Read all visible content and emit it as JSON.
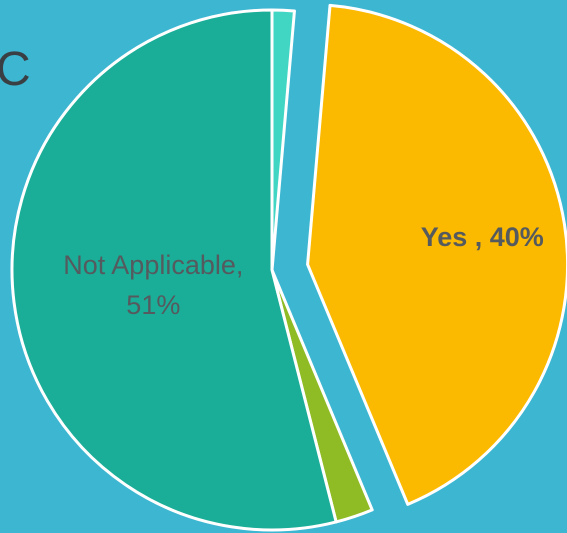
{
  "chart_data": {
    "type": "pie",
    "title_fragment": "C",
    "slices": [
      {
        "label": "",
        "value": 1.3,
        "color": "#41d6c3",
        "show_label": false
      },
      {
        "label": "Yes",
        "value": 40,
        "display": "Yes , 40%",
        "color": "#fbb900",
        "show_label": true,
        "exploded": true
      },
      {
        "label": "",
        "value": 2.2,
        "color": "#8fbc24",
        "show_label": false
      },
      {
        "label": "Not Applicable",
        "value": 51,
        "display": [
          "Not Applicable,",
          "51%"
        ],
        "color": "#1aae98",
        "show_label": true
      }
    ],
    "data_label_color": "#555a5e",
    "border_color": "#ffffff",
    "legend": "none"
  }
}
